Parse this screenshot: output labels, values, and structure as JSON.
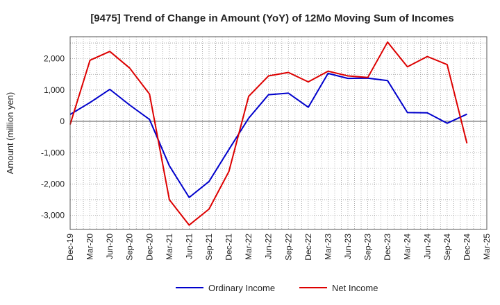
{
  "chart_data": {
    "type": "line",
    "title": "[9475]  Trend of Change in Amount (YoY) of 12Mo Moving Sum of Incomes",
    "xlabel": "",
    "ylabel": "Amount (million yen)",
    "ylim": [
      -3450,
      2700
    ],
    "yticks": [
      2000,
      1000,
      0,
      -1000,
      -2000,
      -3000
    ],
    "ytick_labels": [
      "2,000",
      "1,000",
      "0",
      "-1,000",
      "-2,000",
      "-3,000"
    ],
    "categories": [
      "Dec-19",
      "Mar-20",
      "Jun-20",
      "Sep-20",
      "Dec-20",
      "Mar-21",
      "Jun-21",
      "Sep-21",
      "Dec-21",
      "Mar-22",
      "Jun-22",
      "Sep-22",
      "Dec-22",
      "Mar-23",
      "Jun-23",
      "Sep-23",
      "Dec-23",
      "Mar-24",
      "Jun-24",
      "Sep-24",
      "Dec-24",
      "Mar-25"
    ],
    "grid": true,
    "legend_position": "bottom-center",
    "series": [
      {
        "name": "Ordinary Income",
        "color": "#0000cc",
        "values": [
          220,
          600,
          1020,
          520,
          60,
          -1420,
          -2430,
          -1920,
          -900,
          100,
          850,
          900,
          450,
          1530,
          1370,
          1380,
          1300,
          280,
          270,
          -60,
          230,
          null
        ]
      },
      {
        "name": "Net Income",
        "color": "#dd0000",
        "values": [
          -100,
          1950,
          2230,
          1700,
          870,
          -2500,
          -3310,
          -2800,
          -1600,
          800,
          1450,
          1560,
          1260,
          1600,
          1450,
          1400,
          2530,
          1740,
          2070,
          1810,
          -700,
          null
        ]
      }
    ]
  }
}
